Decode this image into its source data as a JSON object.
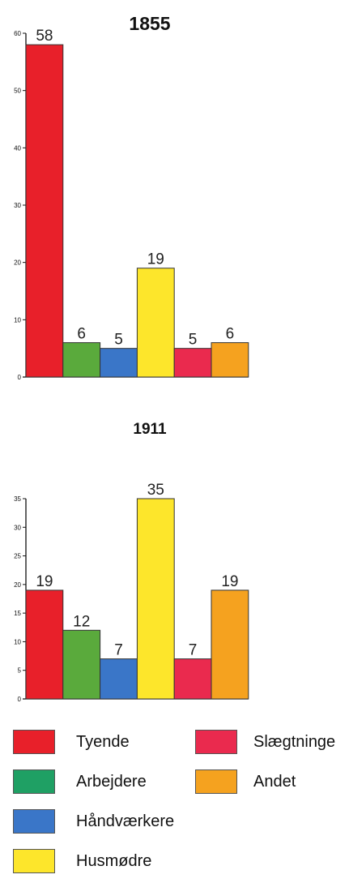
{
  "chart_data": [
    {
      "type": "bar",
      "title": "1855",
      "categories": [
        "Tyende",
        "Arbejdere",
        "Håndværkere",
        "Husmødre",
        "Slægtninge",
        "Andet"
      ],
      "values": [
        58,
        6,
        5,
        19,
        5,
        6
      ],
      "data_labels": [
        "58",
        "6",
        "5",
        "19",
        "5",
        "6"
      ],
      "ylim": [
        0,
        60
      ],
      "yticks": [
        0,
        10,
        20,
        30,
        40,
        50,
        60
      ],
      "grid": false
    },
    {
      "type": "bar",
      "title": "1911",
      "categories": [
        "Tyende",
        "Arbejdere",
        "Håndværkere",
        "Husmødre",
        "Slægtninge",
        "Andet"
      ],
      "values": [
        19,
        12,
        7,
        35,
        7,
        19
      ],
      "data_labels": [
        "19",
        "12",
        "7",
        "35",
        "7",
        "19"
      ],
      "ylim": [
        0,
        35
      ],
      "yticks": [
        0,
        5,
        10,
        15,
        20,
        25,
        30,
        35
      ],
      "grid": false
    }
  ],
  "colors": {
    "Tyende": "#e8202a",
    "Arbejdere": "#5aaa3c",
    "Håndværkere": "#3a76c8",
    "Husmødre": "#fde62b",
    "Slægtninge": "#ea2a4e",
    "Andet": "#f5a21f"
  },
  "legend": {
    "placement": "bottom",
    "items": [
      {
        "label": "Tyende",
        "color": "#e8202a",
        "icon": "red-swatch"
      },
      {
        "label": "Slægtninge",
        "color": "#ea2a4e",
        "icon": "pink-swatch"
      },
      {
        "label": "Arbejdere",
        "color": "#1fa064",
        "icon": "green-swatch"
      },
      {
        "label": "Andet",
        "color": "#f5a21f",
        "icon": "orange-swatch"
      },
      {
        "label": "Håndværkere",
        "color": "#3a76c8",
        "icon": "blue-swatch"
      },
      {
        "label": "Husmødre",
        "color": "#fde62b",
        "icon": "yellow-swatch"
      }
    ]
  }
}
